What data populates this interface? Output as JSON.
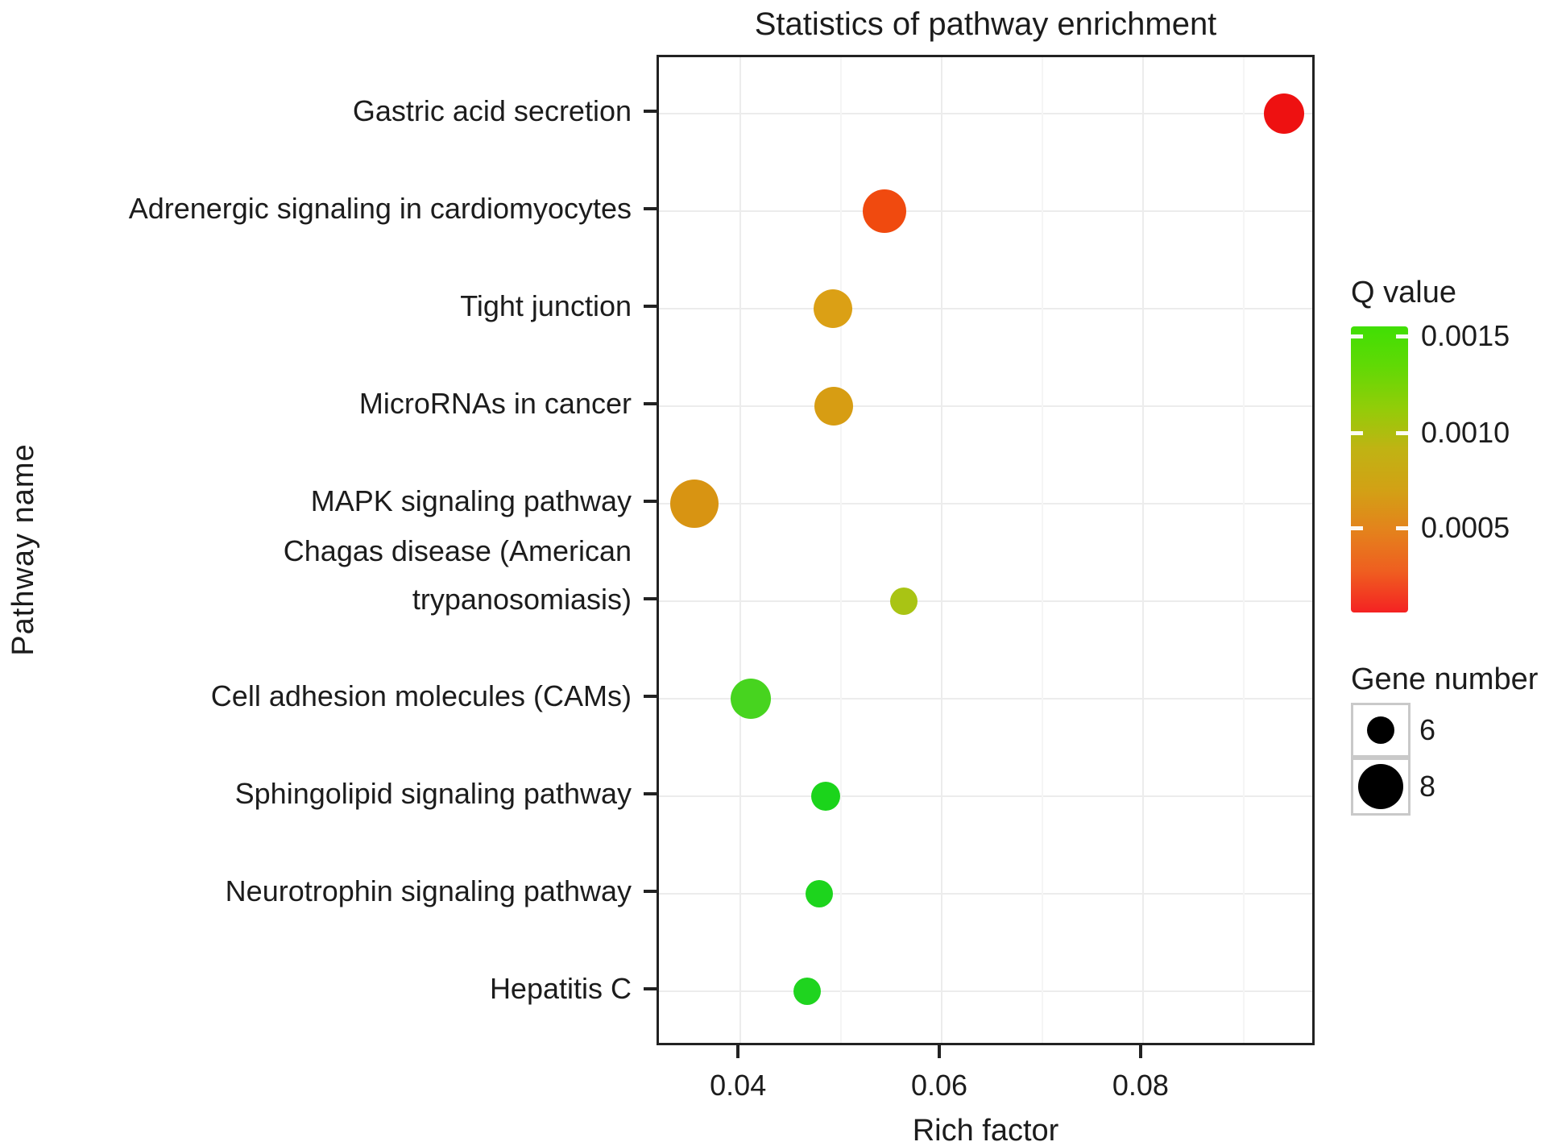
{
  "title": "Statistics of pathway enrichment",
  "chart_data": {
    "type": "scatter",
    "title": "Statistics of pathway enrichment",
    "xlabel": "Rich factor",
    "ylabel": "Pathway name",
    "xlim": [
      0.0319,
      0.0973
    ],
    "grid": true,
    "x_ticks": [
      {
        "value": 0.04,
        "label": "0.04"
      },
      {
        "value": 0.06,
        "label": "0.06"
      },
      {
        "value": 0.08,
        "label": "0.08"
      }
    ],
    "x_minor_ticks": [
      0.05,
      0.07,
      0.09
    ],
    "points": [
      {
        "pathway": "Gastric acid secretion",
        "label_lines": [
          "Gastric acid secretion"
        ],
        "rich_factor": 0.094,
        "gene_number": 7,
        "q_value": 0.0001,
        "color": "#ee1111",
        "radius_px": 25
      },
      {
        "pathway": "Adrenergic signaling in cardiomyocytes",
        "label_lines": [
          "Adrenergic signaling in cardiomyocytes"
        ],
        "rich_factor": 0.0543,
        "gene_number": 8,
        "q_value": 0.0003,
        "color": "#f04a0f",
        "radius_px": 27
      },
      {
        "pathway": "Tight junction",
        "label_lines": [
          "Tight junction"
        ],
        "rich_factor": 0.0492,
        "gene_number": 7,
        "q_value": 0.0006,
        "color": "#dba015",
        "radius_px": 24
      },
      {
        "pathway": "MicroRNAs in cancer",
        "label_lines": [
          "MicroRNAs in cancer"
        ],
        "rich_factor": 0.0493,
        "gene_number": 7,
        "q_value": 0.0006,
        "color": "#d79d13",
        "radius_px": 24
      },
      {
        "pathway": "MAPK signaling pathway",
        "label_lines": [
          "MAPK signaling pathway"
        ],
        "rich_factor": 0.0354,
        "gene_number": 8,
        "q_value": 0.0006,
        "color": "#d89412",
        "radius_px": 30
      },
      {
        "pathway": "Chagas disease (American trypanosomiasis)",
        "label_lines": [
          "Chagas disease (American",
          "trypanosomiasis)"
        ],
        "rich_factor": 0.0562,
        "gene_number": 6,
        "q_value": 0.0011,
        "color": "#a9c414",
        "radius_px": 17
      },
      {
        "pathway": "Cell adhesion molecules (CAMs)",
        "label_lines": [
          "Cell adhesion molecules (CAMs)"
        ],
        "rich_factor": 0.041,
        "gene_number": 7,
        "q_value": 0.0013,
        "color": "#47d41f",
        "radius_px": 25
      },
      {
        "pathway": "Sphingolipid signaling pathway",
        "label_lines": [
          "Sphingolipid signaling pathway"
        ],
        "rich_factor": 0.0485,
        "gene_number": 6,
        "q_value": 0.0014,
        "color": "#1bd41b",
        "radius_px": 18
      },
      {
        "pathway": "Neurotrophin signaling pathway",
        "label_lines": [
          "Neurotrophin signaling pathway"
        ],
        "rich_factor": 0.0478,
        "gene_number": 6,
        "q_value": 0.0014,
        "color": "#1dd41d",
        "radius_px": 17
      },
      {
        "pathway": "Hepatitis C",
        "label_lines": [
          "Hepatitis C"
        ],
        "rich_factor": 0.0466,
        "gene_number": 6,
        "q_value": 0.0014,
        "color": "#1fd41f",
        "radius_px": 17
      }
    ],
    "legend_q": {
      "title": "Q value",
      "tick_labels": [
        "0.0015",
        "0.0010",
        "0.0005"
      ],
      "gradient_stops": [
        "#40df04",
        "#62d905",
        "#92cd08",
        "#c0b313",
        "#d2a115",
        "#e4821c",
        "#ef5e20",
        "#f42222"
      ]
    },
    "legend_size": {
      "title": "Gene number",
      "entries": [
        {
          "label": "6",
          "radius_px": 17
        },
        {
          "label": "8",
          "radius_px": 28
        }
      ]
    }
  }
}
